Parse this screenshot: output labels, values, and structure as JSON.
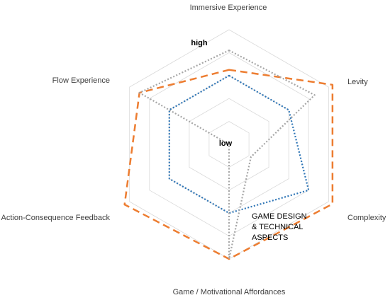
{
  "chart_data": {
    "type": "radar",
    "axes": [
      "Immersive Experience",
      "Levity",
      "Complexity",
      "Game / Motivational Affordances",
      "Action-Consequence Feedback",
      "Flow Experience"
    ],
    "scale_labels": {
      "low": "low",
      "high": "high"
    },
    "range": [
      0,
      5
    ],
    "gridlines": 5,
    "annotation": [
      "GAME DESIGN",
      "& TECHNICAL",
      "ASPECTS"
    ],
    "series": [
      {
        "values": [
          3.25,
          5.2,
          5.2,
          5.0,
          5.25,
          4.5
        ],
        "color": "#ED7D31",
        "style": "dashed"
      },
      {
        "values": [
          3.0,
          3.0,
          4.0,
          3.0,
          3.0,
          3.0
        ],
        "color": "#2E75B6",
        "style": "dotted"
      },
      {
        "values": [
          4.1,
          4.3,
          1.1,
          5.0,
          0.0,
          4.5
        ],
        "color": "#A6A6A6",
        "style": "dotted"
      }
    ]
  }
}
